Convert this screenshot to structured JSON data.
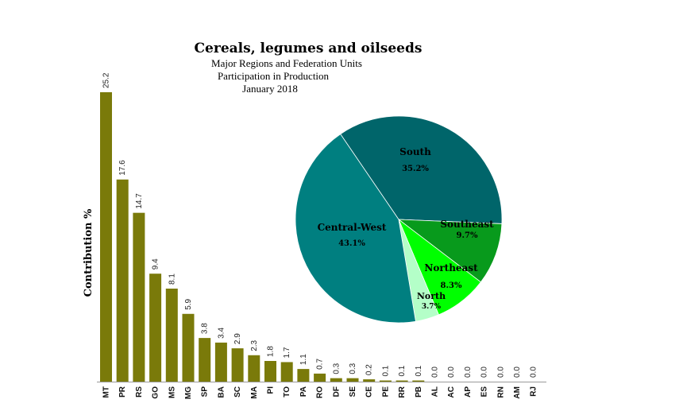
{
  "chart_data": [
    {
      "type": "bar",
      "title": "Cereals, legumes and oilseeds",
      "subtitle_lines": [
        "Major Regions and Federation Units",
        "Participation in Production",
        "January 2018"
      ],
      "ylabel": "Contribution %",
      "categories": [
        "MT",
        "PR",
        "RS",
        "GO",
        "MS",
        "MG",
        "SP",
        "BA",
        "SC",
        "MA",
        "PI",
        "TO",
        "PA",
        "RO",
        "DF",
        "SE",
        "CE",
        "PE",
        "RR",
        "PB",
        "AL",
        "AC",
        "AP",
        "ES",
        "RN",
        "AM",
        "RJ"
      ],
      "value_labels": [
        "25.2",
        "17.6",
        "14.7",
        "9.4",
        "8.1",
        "5.9",
        "3.8",
        "3.4",
        "2.9",
        "2.3",
        "1.8",
        "1.7",
        "1.1",
        "0.7",
        "0.3",
        "0.3",
        "0.2",
        "0.1",
        "0.1",
        "0.1",
        "0.0",
        "0.0",
        "0.0",
        "0.0",
        "0.0",
        "0.0",
        "0.0"
      ],
      "values": [
        25.2,
        17.6,
        14.7,
        9.4,
        8.1,
        5.9,
        3.8,
        3.4,
        2.9,
        2.3,
        1.8,
        1.7,
        1.1,
        0.7,
        0.3,
        0.3,
        0.2,
        0.1,
        0.1,
        0.1,
        0,
        0,
        0,
        0,
        0,
        0,
        0
      ],
      "ylim": [
        0,
        25.2
      ],
      "bar_color": "#7a7a0a",
      "grid": false
    },
    {
      "type": "pie",
      "slices": [
        {
          "label": "South",
          "value_label": "35.2%",
          "value": 35.2,
          "color": "#00656a"
        },
        {
          "label": "Southeast",
          "value_label": "9.7%",
          "value": 9.7,
          "color": "#089a1c"
        },
        {
          "label": "Northeast",
          "value_label": "8.3%",
          "value": 8.3,
          "color": "#00ff00"
        },
        {
          "label": "North",
          "value_label": "3.7%",
          "value": 3.7,
          "color": "#b4ffc8"
        },
        {
          "label": "Central-West",
          "value_label": "43.1%",
          "value": 43.1,
          "color": "#007f80"
        }
      ]
    }
  ]
}
